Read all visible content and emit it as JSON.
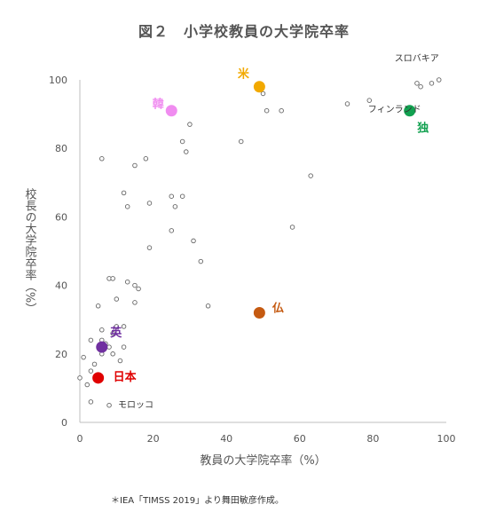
{
  "title": "図２　小学校教員の大学院卒率",
  "source_note": "＊IEA「TIMSS 2019」より舞田敏彦作成。",
  "chart_data": {
    "type": "scatter",
    "title": "図２　小学校教員の大学院卒率",
    "xlabel": "教員の大学院卒率（%）",
    "ylabel": "校長の大学院卒率（%）",
    "xlim": [
      0,
      100
    ],
    "ylim": [
      0,
      100
    ],
    "x_ticks": [
      "0",
      "20",
      "40",
      "60",
      "80",
      "100"
    ],
    "y_ticks": [
      "0",
      "20",
      "40",
      "60",
      "80",
      "100"
    ],
    "grid": false,
    "highlighted": [
      {
        "label": "米",
        "x": 49,
        "y": 98,
        "color": "#F2A900"
      },
      {
        "label": "韓",
        "x": 25,
        "y": 91,
        "color": "#F08CF0"
      },
      {
        "label": "独",
        "x": 90,
        "y": 91,
        "color": "#12A150"
      },
      {
        "label": "仏",
        "x": 49,
        "y": 32,
        "color": "#C55A11"
      },
      {
        "label": "英",
        "x": 6,
        "y": 22,
        "color": "#7030A0"
      },
      {
        "label": "日本",
        "x": 5,
        "y": 13,
        "color": "#E00000"
      }
    ],
    "annotated": [
      {
        "label": "スロバキア",
        "x": 98,
        "y": 100
      },
      {
        "label": "フィンランド",
        "x": 90,
        "y": 96
      },
      {
        "label": "モロッコ",
        "x": 8,
        "y": 5
      }
    ],
    "points": [
      {
        "x": 98,
        "y": 100
      },
      {
        "x": 92,
        "y": 99
      },
      {
        "x": 93,
        "y": 98
      },
      {
        "x": 96,
        "y": 99
      },
      {
        "x": 79,
        "y": 94
      },
      {
        "x": 73,
        "y": 93
      },
      {
        "x": 51,
        "y": 91
      },
      {
        "x": 55,
        "y": 91
      },
      {
        "x": 50,
        "y": 96
      },
      {
        "x": 30,
        "y": 87
      },
      {
        "x": 28,
        "y": 82
      },
      {
        "x": 44,
        "y": 82
      },
      {
        "x": 29,
        "y": 79
      },
      {
        "x": 6,
        "y": 77
      },
      {
        "x": 18,
        "y": 77
      },
      {
        "x": 15,
        "y": 75
      },
      {
        "x": 63,
        "y": 72
      },
      {
        "x": 12,
        "y": 67
      },
      {
        "x": 25,
        "y": 66
      },
      {
        "x": 28,
        "y": 66
      },
      {
        "x": 13,
        "y": 63
      },
      {
        "x": 19,
        "y": 64
      },
      {
        "x": 26,
        "y": 63
      },
      {
        "x": 58,
        "y": 57
      },
      {
        "x": 25,
        "y": 56
      },
      {
        "x": 31,
        "y": 53
      },
      {
        "x": 19,
        "y": 51
      },
      {
        "x": 33,
        "y": 47
      },
      {
        "x": 8,
        "y": 42
      },
      {
        "x": 9,
        "y": 42
      },
      {
        "x": 13,
        "y": 41
      },
      {
        "x": 15,
        "y": 40
      },
      {
        "x": 16,
        "y": 39
      },
      {
        "x": 10,
        "y": 36
      },
      {
        "x": 15,
        "y": 35
      },
      {
        "x": 5,
        "y": 34
      },
      {
        "x": 35,
        "y": 34
      },
      {
        "x": 12,
        "y": 28
      },
      {
        "x": 10,
        "y": 28
      },
      {
        "x": 6,
        "y": 27
      },
      {
        "x": 9,
        "y": 26
      },
      {
        "x": 3,
        "y": 24
      },
      {
        "x": 6,
        "y": 24
      },
      {
        "x": 7,
        "y": 23
      },
      {
        "x": 12,
        "y": 22
      },
      {
        "x": 8,
        "y": 22
      },
      {
        "x": 9,
        "y": 20
      },
      {
        "x": 6,
        "y": 20
      },
      {
        "x": 1,
        "y": 19
      },
      {
        "x": 11,
        "y": 18
      },
      {
        "x": 4,
        "y": 17
      },
      {
        "x": 3,
        "y": 15
      },
      {
        "x": 0,
        "y": 13
      },
      {
        "x": 2,
        "y": 11
      },
      {
        "x": 3,
        "y": 6
      },
      {
        "x": 8,
        "y": 5
      }
    ]
  }
}
